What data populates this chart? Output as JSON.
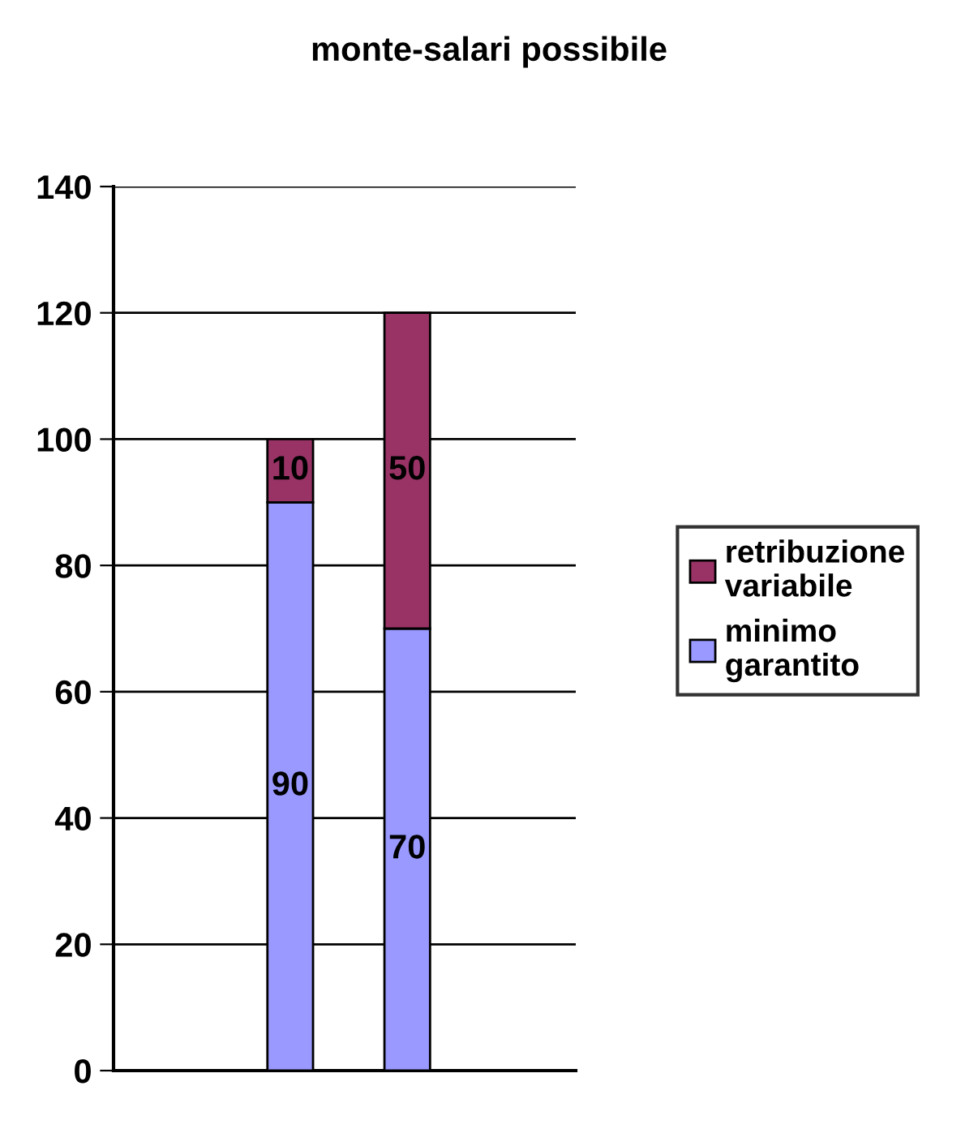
{
  "chart_data": {
    "type": "bar",
    "title": "monte-salari possibile",
    "categories": [
      null,
      null
    ],
    "stacked": true,
    "series": [
      {
        "name": "minimo garantito",
        "color": "#9999ff",
        "values": [
          90,
          70
        ]
      },
      {
        "name": "retribuzione variabile",
        "color": "#993366",
        "values": [
          10,
          50
        ]
      }
    ],
    "ylim": [
      0,
      140
    ],
    "yticks": [
      0,
      20,
      40,
      60,
      80,
      100,
      120,
      140
    ],
    "grid": "y",
    "legend": "right",
    "data_labels": true,
    "tick_labels": "y"
  }
}
